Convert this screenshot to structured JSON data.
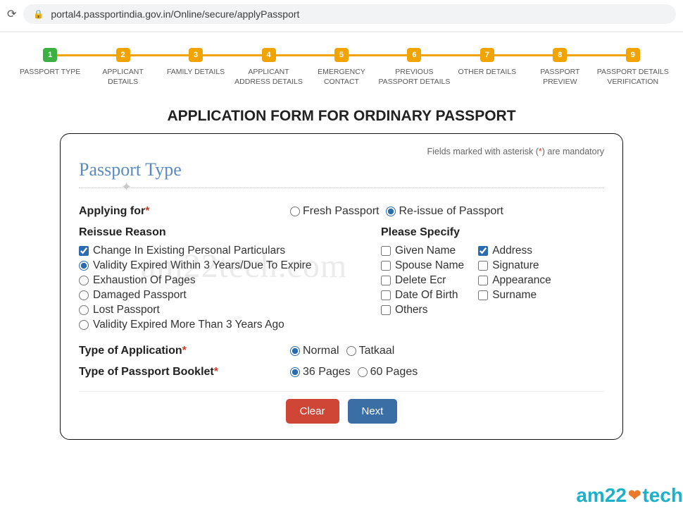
{
  "browser": {
    "url": "portal4.passportindia.gov.in/Online/secure/applyPassport"
  },
  "stepper": {
    "active_color": "#3cb043",
    "pending_color": "#f1a300",
    "line_color": "#f1a300",
    "steps": [
      {
        "num": "1",
        "label": "PASSPORT TYPE",
        "state": "active"
      },
      {
        "num": "2",
        "label": "APPLICANT\nDETAILS",
        "state": "pending"
      },
      {
        "num": "3",
        "label": "FAMILY DETAILS",
        "state": "pending"
      },
      {
        "num": "4",
        "label": "APPLICANT\nADDRESS DETAILS",
        "state": "pending"
      },
      {
        "num": "5",
        "label": "EMERGENCY\nCONTACT",
        "state": "pending"
      },
      {
        "num": "6",
        "label": "PREVIOUS\nPASSPORT DETAILS",
        "state": "pending"
      },
      {
        "num": "7",
        "label": "OTHER DETAILS",
        "state": "pending"
      },
      {
        "num": "8",
        "label": "PASSPORT\nPREVIEW",
        "state": "pending"
      },
      {
        "num": "9",
        "label": "PASSPORT DETAILS\nVERIFICATION",
        "state": "pending"
      }
    ]
  },
  "page_title": "APPLICATION FORM FOR ORDINARY PASSPORT",
  "mandatory_note": {
    "prefix": "Fields marked with asterisk (",
    "star": "*",
    "suffix": ") are mandatory"
  },
  "section_title": "Passport Type",
  "applying_for": {
    "label": "Applying for",
    "required": true,
    "options": [
      {
        "label": "Fresh Passport",
        "checked": false
      },
      {
        "label": "Re-issue of Passport",
        "checked": true
      }
    ]
  },
  "reissue": {
    "title": "Reissue Reason",
    "items": [
      {
        "type": "checkbox",
        "label": "Change In Existing Personal Particulars",
        "checked": true
      },
      {
        "type": "radio",
        "label": "Validity Expired Within 3 Years/Due To Expire",
        "checked": true
      },
      {
        "type": "radio",
        "label": "Exhaustion Of Pages",
        "checked": false
      },
      {
        "type": "radio",
        "label": "Damaged Passport",
        "checked": false
      },
      {
        "type": "radio",
        "label": "Lost Passport",
        "checked": false
      },
      {
        "type": "radio",
        "label": "Validity Expired More Than 3 Years Ago",
        "checked": false
      }
    ]
  },
  "specify": {
    "title": "Please Specify",
    "col1": [
      {
        "label": "Given Name",
        "checked": false
      },
      {
        "label": "Spouse Name",
        "checked": false
      },
      {
        "label": "Delete Ecr",
        "checked": false
      },
      {
        "label": "Date Of Birth",
        "checked": false
      },
      {
        "label": "Others",
        "checked": false
      }
    ],
    "col2": [
      {
        "label": "Address",
        "checked": true
      },
      {
        "label": "Signature",
        "checked": false
      },
      {
        "label": "Appearance",
        "checked": false
      },
      {
        "label": "Surname",
        "checked": false
      }
    ]
  },
  "app_type": {
    "label": "Type of Application",
    "required": true,
    "options": [
      {
        "label": "Normal",
        "checked": true
      },
      {
        "label": "Tatkaal",
        "checked": false
      }
    ]
  },
  "booklet": {
    "label": "Type of Passport Booklet",
    "required": true,
    "options": [
      {
        "label": "36 Pages",
        "checked": true
      },
      {
        "label": "60 Pages",
        "checked": false
      }
    ]
  },
  "buttons": {
    "clear": "Clear",
    "next": "Next",
    "danger_color": "#d04636",
    "primary_color": "#3b6ea5"
  },
  "watermark": {
    "center": "am22tech.com",
    "corner_a": "am22",
    "corner_heart": "❤",
    "corner_b": "tech"
  }
}
